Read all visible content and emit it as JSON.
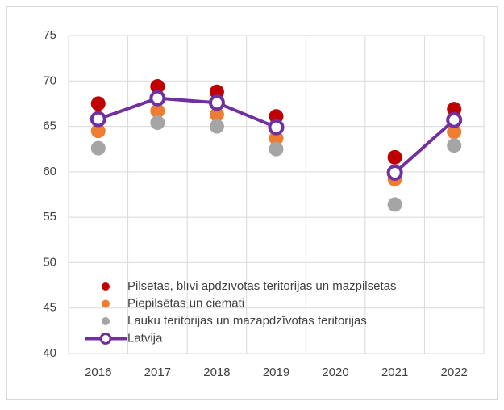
{
  "chart_data": {
    "type": "line",
    "categories": [
      "2016",
      "2017",
      "2018",
      "2019",
      "2020",
      "2021",
      "2022"
    ],
    "series": [
      {
        "name": "Pilsētas, blīvi apdzīvotas teritorijas un mazpilsētas",
        "color": "#c00000",
        "style": "markers",
        "values": [
          67.5,
          69.4,
          68.8,
          66.1,
          null,
          61.6,
          66.9
        ]
      },
      {
        "name": "Piepilsētas un ciemati",
        "color": "#ed7d31",
        "style": "markers",
        "values": [
          64.5,
          66.7,
          66.3,
          63.7,
          null,
          59.2,
          64.4
        ]
      },
      {
        "name": "Lauku teritorijas un mazapdzīvotas teritorijas",
        "color": "#a5a5a5",
        "style": "markers",
        "values": [
          62.6,
          65.4,
          65.0,
          62.5,
          null,
          56.4,
          62.9
        ]
      },
      {
        "name": "Latvija",
        "color": "#7030a0",
        "style": "line",
        "values": [
          65.8,
          68.1,
          67.6,
          64.9,
          null,
          59.9,
          65.7
        ]
      }
    ],
    "ylim": [
      40,
      75
    ],
    "yticks": [
      40,
      45,
      50,
      55,
      60,
      65,
      70,
      75
    ],
    "grid": true,
    "legend": "lower-left"
  }
}
